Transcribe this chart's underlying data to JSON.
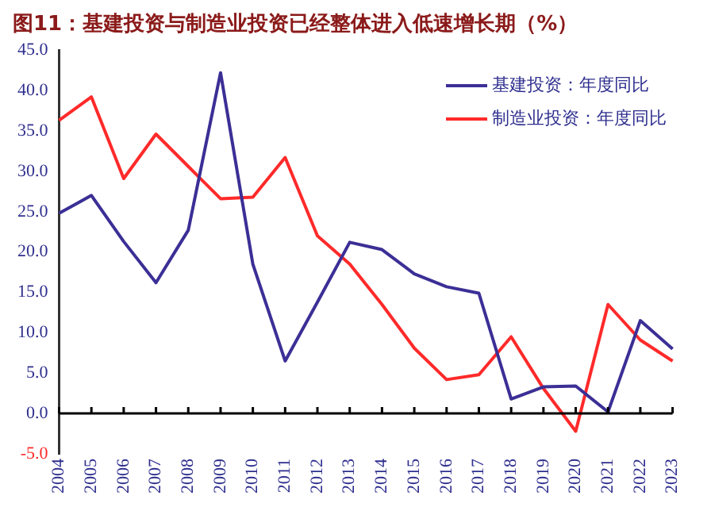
{
  "chart_data": {
    "type": "line",
    "title": "图11：基建投资与制造业投资已经整体进入低速增长期（%）",
    "categories": [
      "2004",
      "2005",
      "2006",
      "2007",
      "2008",
      "2009",
      "2010",
      "2011",
      "2012",
      "2013",
      "2014",
      "2015",
      "2016",
      "2017",
      "2018",
      "2019",
      "2020",
      "2021",
      "2022",
      "2023"
    ],
    "series": [
      {
        "name": "基建投资：年度同比",
        "color": "#3b2f96",
        "values": [
          24.8,
          27.0,
          21.3,
          16.2,
          22.7,
          42.2,
          18.5,
          6.5,
          13.8,
          21.2,
          20.3,
          17.3,
          15.7,
          14.9,
          1.8,
          3.3,
          3.4,
          0.2,
          11.5,
          8.0
        ]
      },
      {
        "name": "制造业投资：年度同比",
        "color": "#ff2a2a",
        "values": [
          36.3,
          39.2,
          29.1,
          34.6,
          30.6,
          26.6,
          26.8,
          31.7,
          22.0,
          18.5,
          13.5,
          8.1,
          4.2,
          4.8,
          9.5,
          3.1,
          -2.2,
          13.5,
          9.1,
          6.5
        ]
      }
    ],
    "ylim": [
      -5,
      45
    ],
    "yticks": [
      {
        "value": -5,
        "label": "-5.0"
      },
      {
        "value": 0,
        "label": "0.0"
      },
      {
        "value": 5,
        "label": "5.0"
      },
      {
        "value": 10,
        "label": "10.0"
      },
      {
        "value": 15,
        "label": "15.0"
      },
      {
        "value": 20,
        "label": "20.0"
      },
      {
        "value": 25,
        "label": "25.0"
      },
      {
        "value": 30,
        "label": "30.0"
      },
      {
        "value": 35,
        "label": "35.0"
      },
      {
        "value": 40,
        "label": "40.0"
      },
      {
        "value": 45,
        "label": "45.0"
      }
    ],
    "legend": "top right",
    "grid": false,
    "marker": "none",
    "line_style": "solid"
  }
}
